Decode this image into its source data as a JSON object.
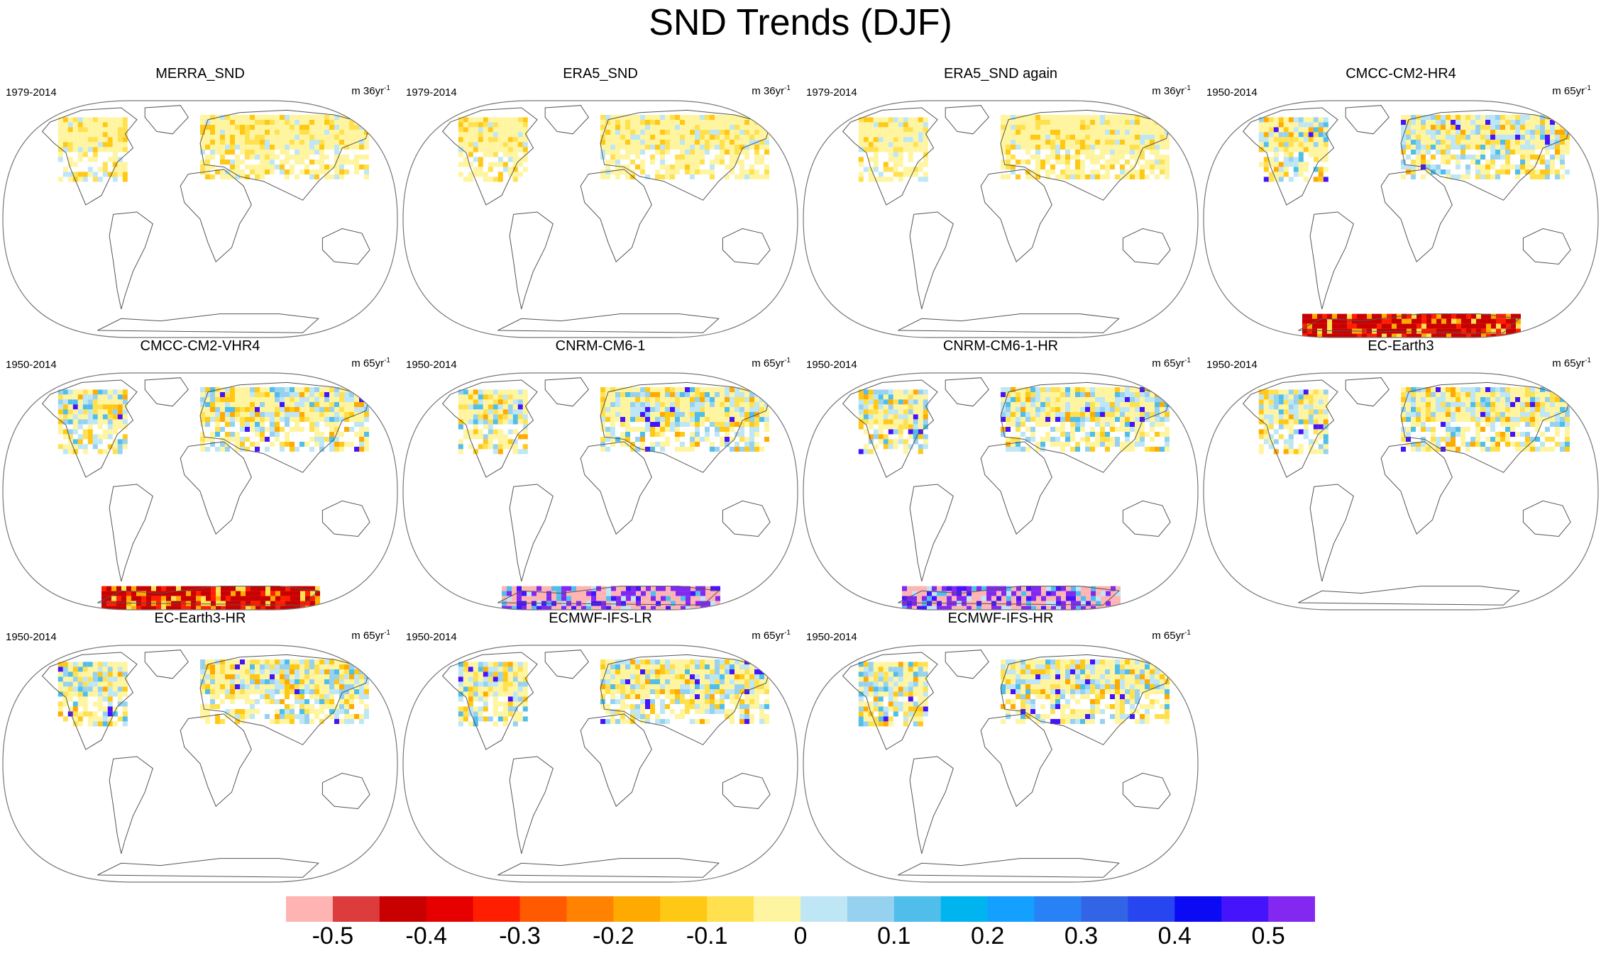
{
  "title": "SND Trends (DJF)",
  "chart_data": {
    "type": "heatmap",
    "title": "SND Trends (DJF)",
    "projection": "Winkel tripel world map",
    "panels": [
      {
        "name": "MERRA_SND",
        "period": "1979-2014",
        "units": "m 36yr",
        "units_exp": "-1",
        "antarctic": "none"
      },
      {
        "name": "ERA5_SND",
        "period": "1979-2014",
        "units": "m 36yr",
        "units_exp": "-1",
        "antarctic": "none"
      },
      {
        "name": "ERA5_SND again",
        "period": "1979-2014",
        "units": "m 36yr",
        "units_exp": "-1",
        "antarctic": "none"
      },
      {
        "name": "CMCC-CM2-HR4",
        "period": "1950-2014",
        "units": "m 65yr",
        "units_exp": "-1",
        "antarctic": "negative"
      },
      {
        "name": "CMCC-CM2-VHR4",
        "period": "1950-2014",
        "units": "m 65yr",
        "units_exp": "-1",
        "antarctic": "negative"
      },
      {
        "name": "CNRM-CM6-1",
        "period": "1950-2014",
        "units": "m 65yr",
        "units_exp": "-1",
        "antarctic": "mixed"
      },
      {
        "name": "CNRM-CM6-1-HR",
        "period": "1950-2014",
        "units": "m 65yr",
        "units_exp": "-1",
        "antarctic": "mixed"
      },
      {
        "name": "EC-Earth3",
        "period": "1950-2014",
        "units": "m 65yr",
        "units_exp": "-1",
        "antarctic": "none"
      },
      {
        "name": "EC-Earth3-HR",
        "period": "1950-2014",
        "units": "m 65yr",
        "units_exp": "-1",
        "antarctic": "none"
      },
      {
        "name": "ECMWF-IFS-LR",
        "period": "1950-2014",
        "units": "m 65yr",
        "units_exp": "-1",
        "antarctic": "none"
      },
      {
        "name": "ECMWF-IFS-HR",
        "period": "1950-2014",
        "units": "m 65yr",
        "units_exp": "-1",
        "antarctic": "none"
      }
    ],
    "colorbar": {
      "colors": [
        "#ffb4b4",
        "#dc3c3c",
        "#c80000",
        "#e60000",
        "#ff1e00",
        "#ff5a00",
        "#ff8200",
        "#ffaa00",
        "#ffc814",
        "#ffe150",
        "#fff5a0",
        "#bee6f5",
        "#96d2f0",
        "#50beeb",
        "#00b4f0",
        "#14a0ff",
        "#2882f5",
        "#3264e6",
        "#2846f0",
        "#0a0af5",
        "#4614fa",
        "#8228f0"
      ],
      "tick_labels": [
        "-0.5",
        "-0.4",
        "-0.3",
        "-0.2",
        "-0.1",
        "0",
        "0.1",
        "0.2",
        "0.3",
        "0.4",
        "0.5"
      ],
      "range": [
        -0.55,
        0.55
      ]
    }
  }
}
